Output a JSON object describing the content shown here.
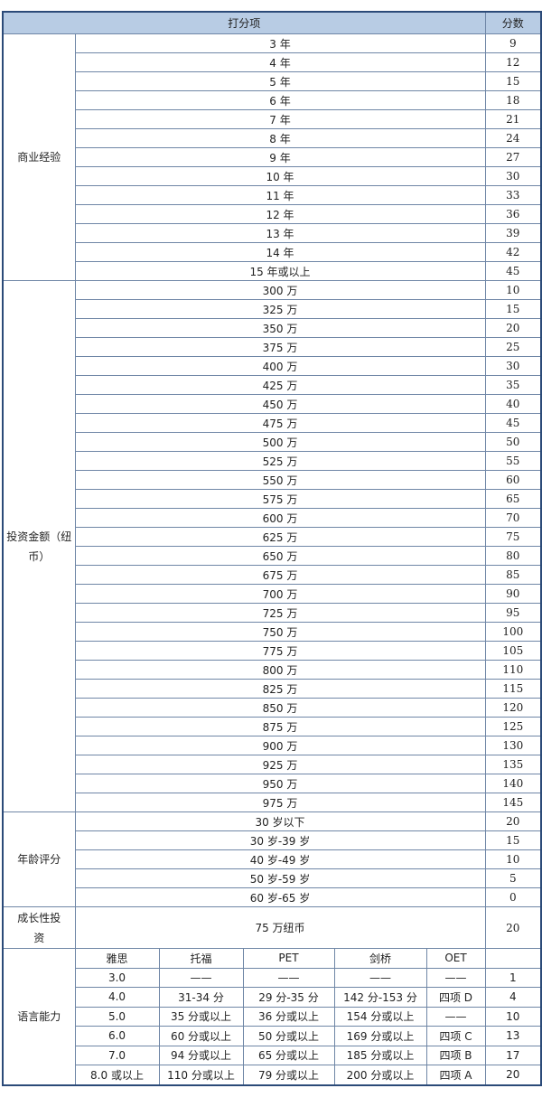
{
  "header": {
    "item": "打分项",
    "score": "分数"
  },
  "sections": [
    {
      "category": "商业经验",
      "rows": [
        [
          "3 年",
          "9"
        ],
        [
          "4 年",
          "12"
        ],
        [
          "5 年",
          "15"
        ],
        [
          "6 年",
          "18"
        ],
        [
          "7 年",
          "21"
        ],
        [
          "8 年",
          "24"
        ],
        [
          "9 年",
          "27"
        ],
        [
          "10 年",
          "30"
        ],
        [
          "11 年",
          "33"
        ],
        [
          "12 年",
          "36"
        ],
        [
          "13 年",
          "39"
        ],
        [
          "14 年",
          "42"
        ],
        [
          "15 年或以上",
          "45"
        ]
      ]
    },
    {
      "category": "投资金额（纽币）",
      "rows": [
        [
          "300 万",
          "10"
        ],
        [
          "325 万",
          "15"
        ],
        [
          "350 万",
          "20"
        ],
        [
          "375 万",
          "25"
        ],
        [
          "400 万",
          "30"
        ],
        [
          "425 万",
          "35"
        ],
        [
          "450 万",
          "40"
        ],
        [
          "475 万",
          "45"
        ],
        [
          "500 万",
          "50"
        ],
        [
          "525 万",
          "55"
        ],
        [
          "550 万",
          "60"
        ],
        [
          "575 万",
          "65"
        ],
        [
          "600 万",
          "70"
        ],
        [
          "625 万",
          "75"
        ],
        [
          "650 万",
          "80"
        ],
        [
          "675 万",
          "85"
        ],
        [
          "700 万",
          "90"
        ],
        [
          "725 万",
          "95"
        ],
        [
          "750 万",
          "100"
        ],
        [
          "775 万",
          "105"
        ],
        [
          "800 万",
          "110"
        ],
        [
          "825 万",
          "115"
        ],
        [
          "850 万",
          "120"
        ],
        [
          "875 万",
          "125"
        ],
        [
          "900 万",
          "130"
        ],
        [
          "925 万",
          "135"
        ],
        [
          "950 万",
          "140"
        ],
        [
          "975 万",
          "145"
        ]
      ]
    },
    {
      "category": "年龄评分",
      "rows": [
        [
          "30 岁以下",
          "20"
        ],
        [
          "30 岁-39 岁",
          "15"
        ],
        [
          "40 岁-49 岁",
          "10"
        ],
        [
          "50 岁-59 岁",
          "5"
        ],
        [
          "60 岁-65 岁",
          "0"
        ]
      ]
    }
  ],
  "growth": {
    "category": "成长性投资",
    "item": "75 万纽币",
    "score": "20"
  },
  "language": {
    "category": "语言能力",
    "columns": [
      "雅思",
      "托福",
      "PET",
      "剑桥",
      "OET",
      ""
    ],
    "rows": [
      [
        "3.0",
        "——",
        "——",
        "——",
        "——",
        "1"
      ],
      [
        "4.0",
        "31-34 分",
        "29 分-35 分",
        "142 分-153 分",
        "四项 D",
        "4"
      ],
      [
        "5.0",
        "35 分或以上",
        "36 分或以上",
        "154 分或以上",
        "——",
        "10"
      ],
      [
        "6.0",
        "60 分或以上",
        "50 分或以上",
        "169 分或以上",
        "四项 C",
        "13"
      ],
      [
        "7.0",
        "94 分或以上",
        "65 分或以上",
        "185 分或以上",
        "四项 B",
        "17"
      ],
      [
        "8.0 或以上",
        "110 分或以上",
        "79 分或以上",
        "200 分或以上",
        "四项 A",
        "20"
      ]
    ]
  },
  "colors": {
    "header_bg": "#b8cce4",
    "border": "#6f86a6",
    "outer_border": "#2b4a78"
  }
}
